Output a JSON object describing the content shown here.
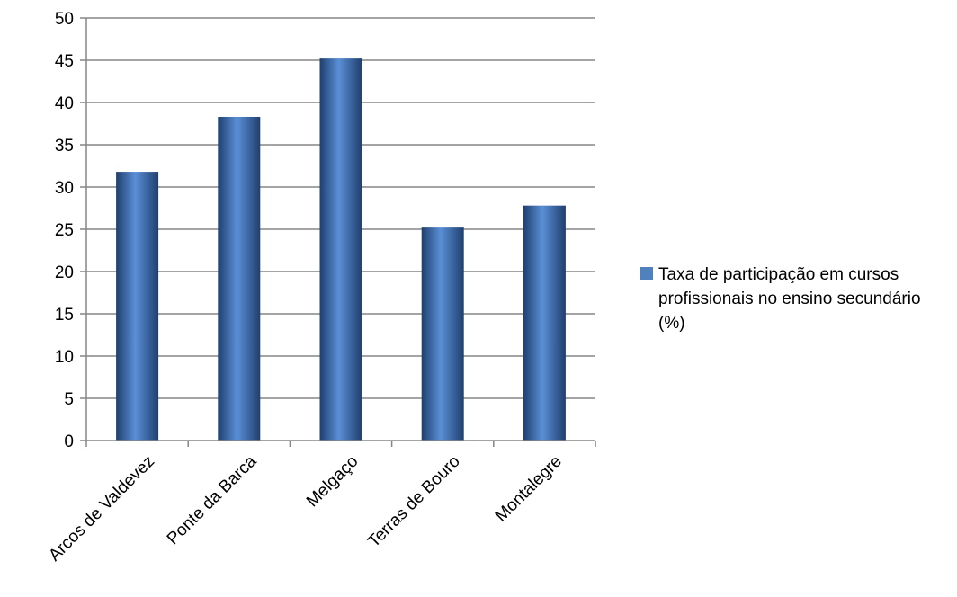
{
  "chart_data": {
    "type": "bar",
    "categories": [
      "Arcos de Valdevez",
      "Ponte da Barca",
      "Melgaço",
      "Terras de Bouro",
      "Montalegre"
    ],
    "series": [
      {
        "name": "Taxa de participação em cursos profissionais no ensino secundário (%)",
        "values": [
          31.8,
          38.3,
          45.2,
          25.2,
          27.8
        ]
      }
    ],
    "yticks": [
      "0",
      "5",
      "10",
      "15",
      "20",
      "25",
      "30",
      "35",
      "40",
      "45",
      "50"
    ],
    "ylim": [
      0,
      50
    ],
    "grid": true,
    "legend_position": "right",
    "title": "",
    "xlabel": "",
    "ylabel": "",
    "colors": {
      "bar_light": "#5a8fd6",
      "bar_mid": "#3f71b8",
      "bar_dark": "#1f3f6e",
      "legend_swatch": "#4f81bd",
      "grid": "#868686",
      "axis": "#868686"
    }
  }
}
